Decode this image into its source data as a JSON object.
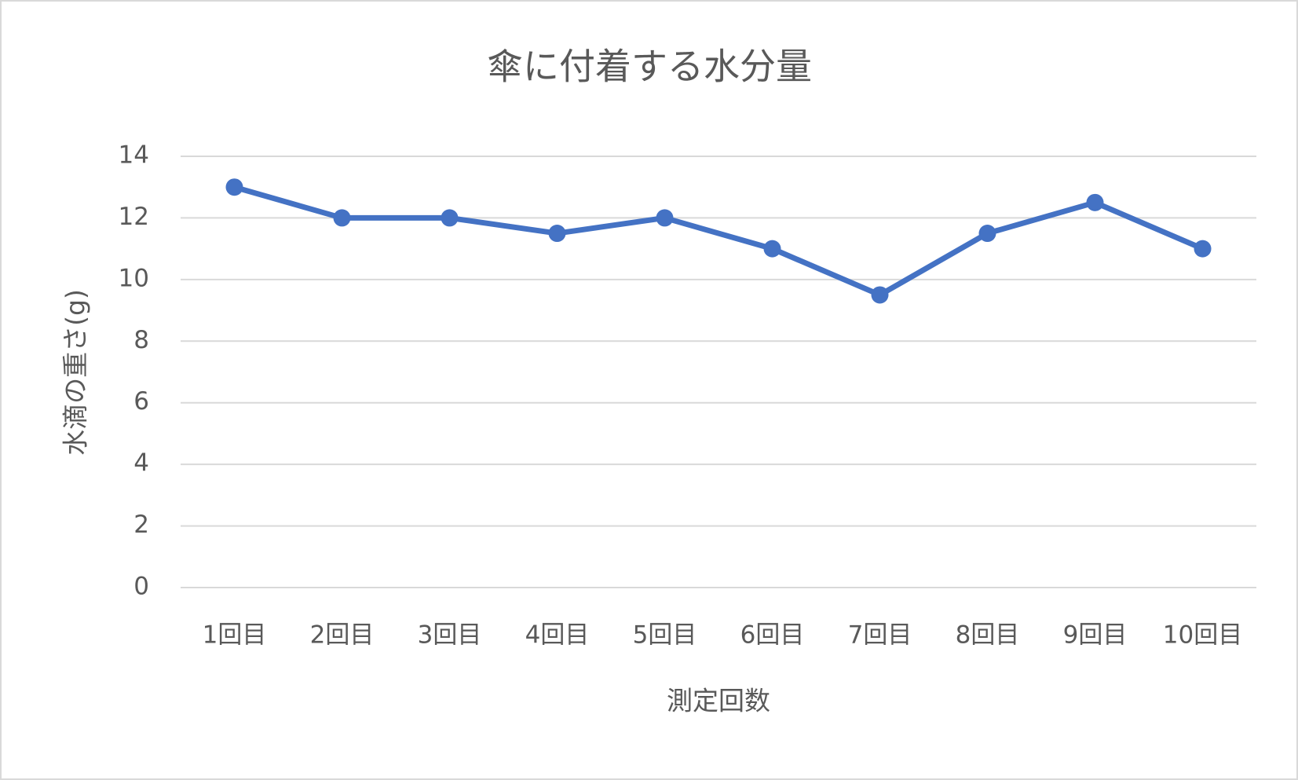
{
  "chart_data": {
    "type": "line",
    "title": "傘に付着する水分量",
    "x_label": "測定回数",
    "y_label": "水滴の重さ(g)",
    "categories": [
      "1回目",
      "2回目",
      "3回目",
      "4回目",
      "5回目",
      "6回目",
      "7回目",
      "8回目",
      "9回目",
      "10回目"
    ],
    "values": [
      13,
      12,
      12,
      11.5,
      12,
      11,
      9.5,
      11.5,
      12.5,
      11
    ],
    "color": "#4472c4",
    "ylim": [
      0,
      14
    ],
    "yticks": [
      0,
      2,
      4,
      6,
      8,
      10,
      12,
      14
    ],
    "grid": true
  }
}
